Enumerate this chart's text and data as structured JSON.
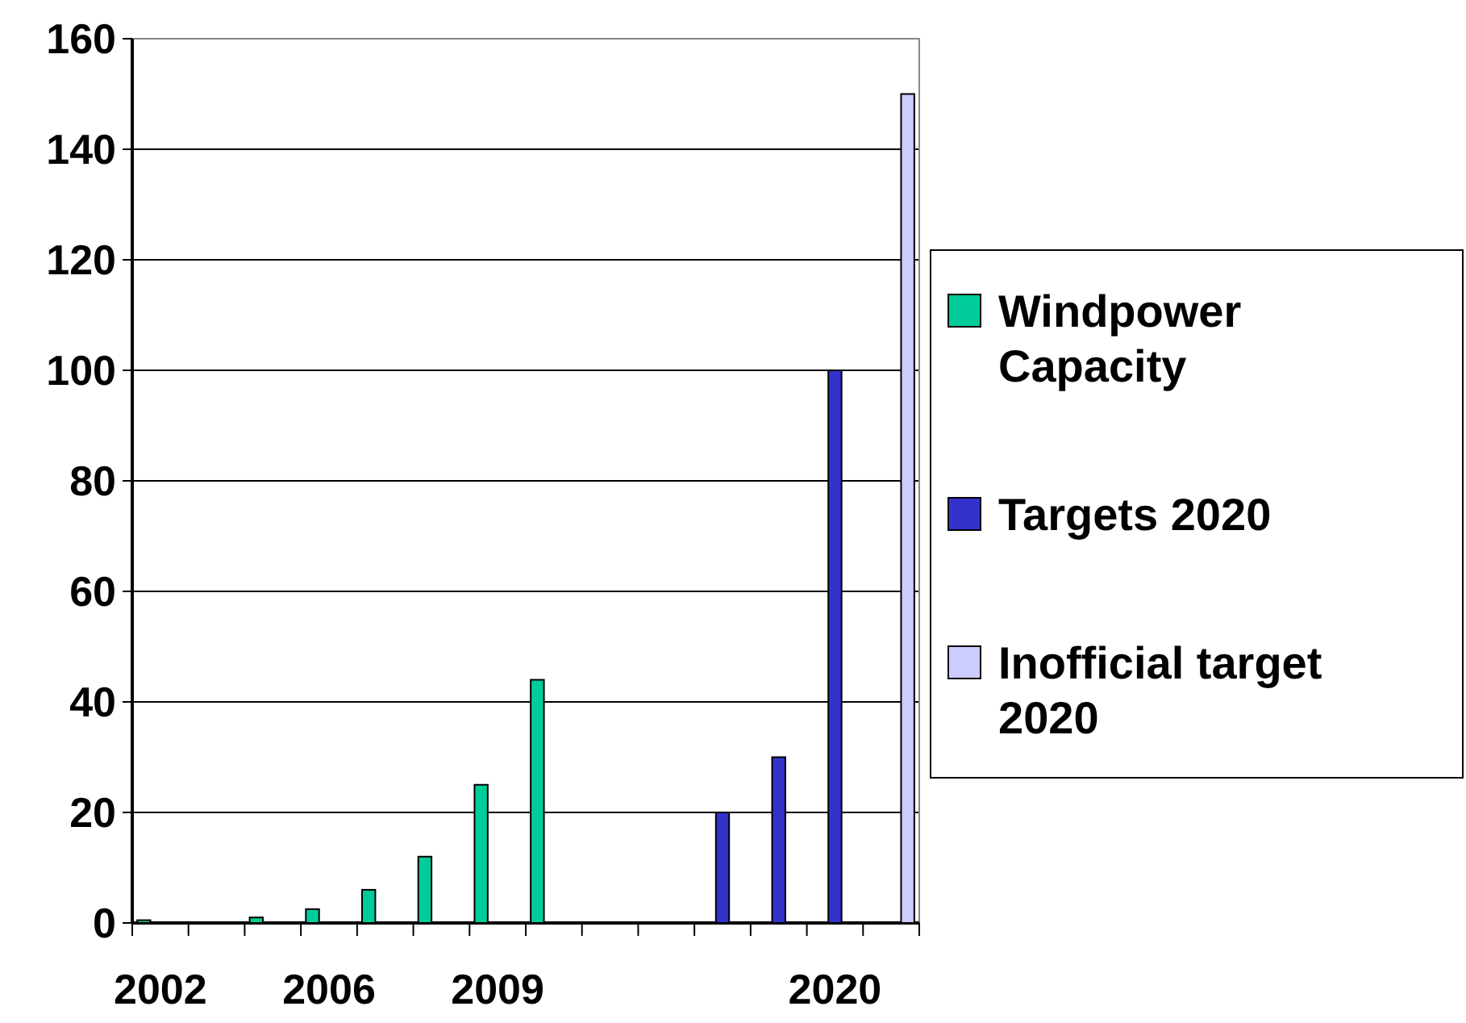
{
  "chart_data": {
    "type": "bar",
    "categories": [
      "2002",
      null,
      null,
      "2006",
      null,
      null,
      "2009",
      null,
      null,
      null,
      null,
      null,
      "2020",
      null
    ],
    "series": [
      {
        "name": "Windpower Capacity",
        "color": "#00cc99",
        "values": [
          0.5,
          null,
          1,
          2.5,
          6,
          12,
          25,
          44,
          null,
          null,
          null,
          null,
          null,
          null
        ]
      },
      {
        "name": "Targets 2020",
        "color": "#3333cc",
        "values": [
          null,
          null,
          null,
          null,
          null,
          null,
          null,
          null,
          null,
          null,
          20,
          30,
          100,
          null
        ]
      },
      {
        "name": "Inofficial target 2020",
        "color": "#ccccff",
        "values": [
          null,
          null,
          null,
          null,
          null,
          null,
          null,
          null,
          null,
          null,
          null,
          null,
          null,
          150
        ]
      }
    ],
    "ylim": [
      0,
      160
    ],
    "yticks": [
      0,
      20,
      40,
      60,
      80,
      100,
      120,
      140,
      160
    ],
    "grid": "y",
    "legend": "right"
  }
}
